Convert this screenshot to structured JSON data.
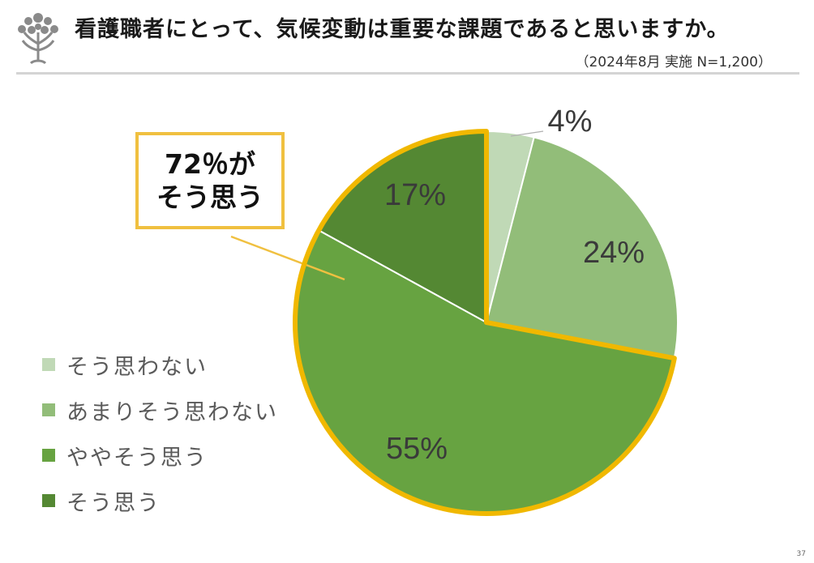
{
  "header": {
    "title": "看護職者にとって、気候変動は重要な課題であると思いますか。",
    "subtitle": "（2024年8月 実施 N=1,200）"
  },
  "callout": {
    "line1": "72％が",
    "line2": "そう思う"
  },
  "page_number": "37",
  "chart_data": {
    "type": "pie",
    "title": "看護職者にとって、気候変動は重要な課題であると思いますか。",
    "order": "clockwise from 12 o'clock",
    "slices": [
      {
        "name": "そう思わない",
        "value": 4,
        "label": "4%",
        "color": "#c0d9b6"
      },
      {
        "name": "あまりそう思わない",
        "value": 24,
        "label": "24%",
        "color": "#92bd79"
      },
      {
        "name": "ややそう思う",
        "value": 55,
        "label": "55%",
        "color": "#67a341"
      },
      {
        "name": "そう思う",
        "value": 17,
        "label": "17%",
        "color": "#548833"
      }
    ],
    "highlight": {
      "slices": [
        "ややそう思う",
        "そう思う"
      ],
      "total": 72,
      "outline_color": "#f0b800"
    },
    "legend": "left"
  }
}
